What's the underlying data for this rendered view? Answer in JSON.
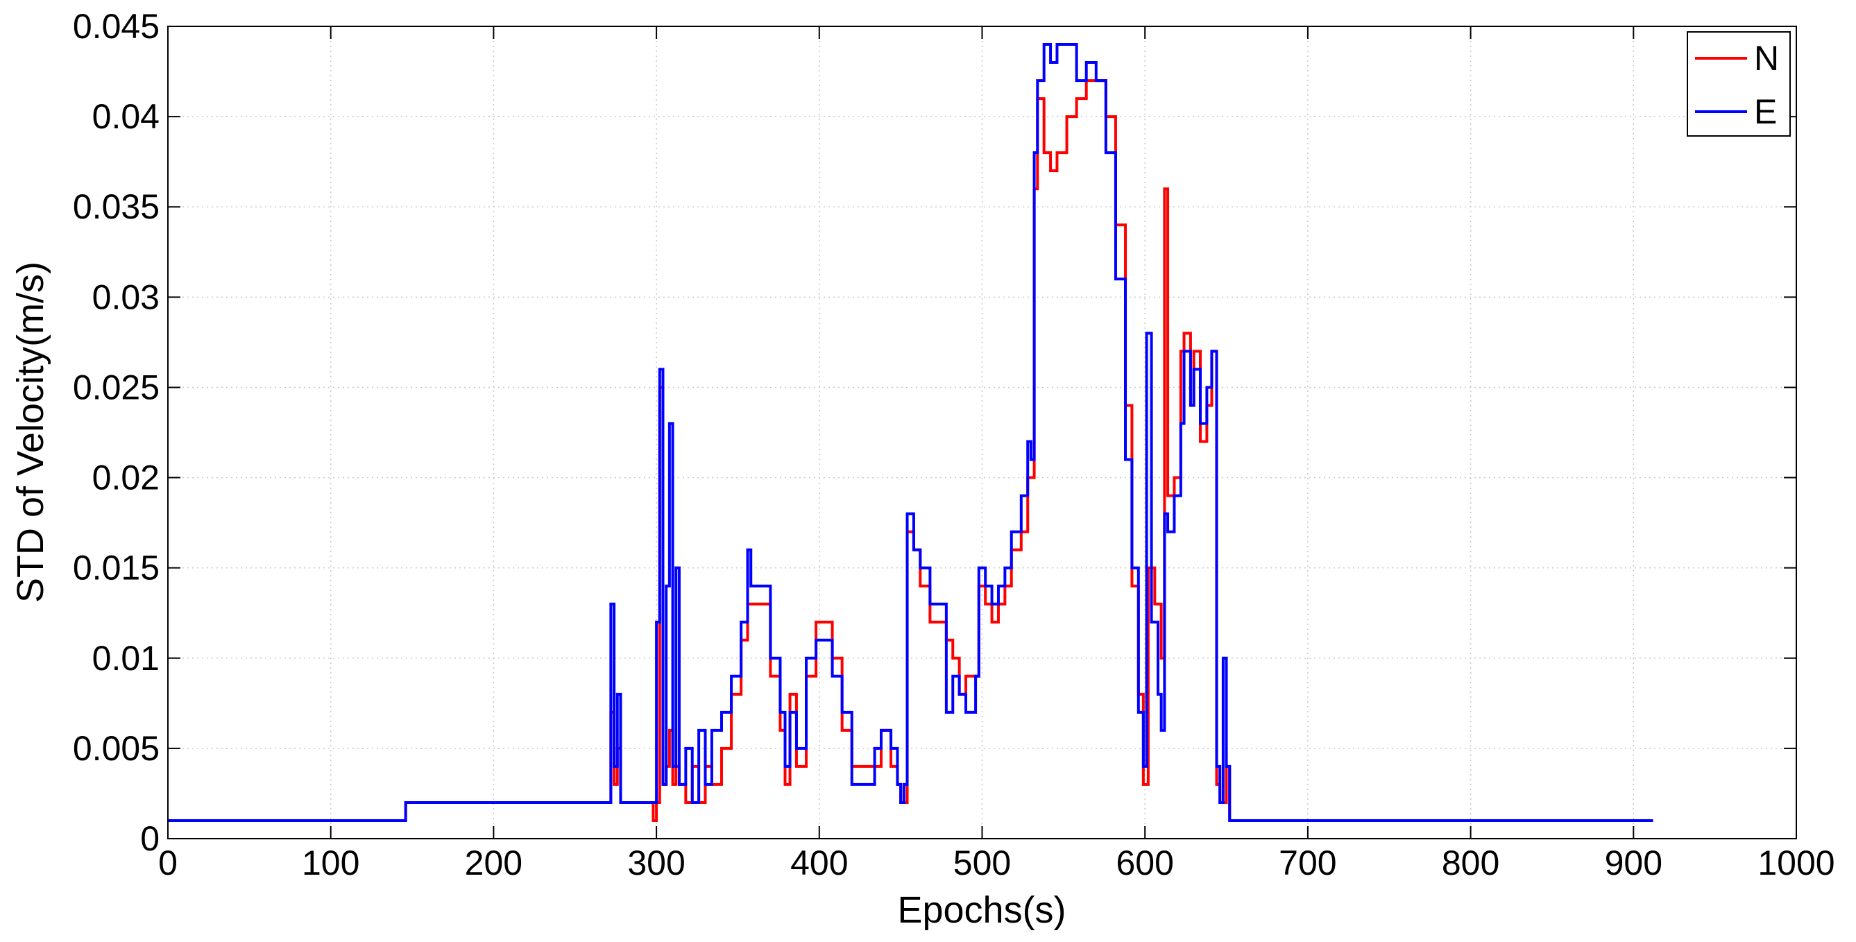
{
  "chart_data": {
    "type": "line",
    "title": "",
    "xlabel": "Epochs(s)",
    "ylabel": "STD of Velocity(m/s)",
    "xlim": [
      0,
      1000
    ],
    "ylim": [
      0,
      0.045
    ],
    "xticks": [
      "0",
      "100",
      "200",
      "300",
      "400",
      "500",
      "600",
      "700",
      "800",
      "900",
      "1000"
    ],
    "yticks": [
      "0",
      "0.005",
      "0.01",
      "0.015",
      "0.02",
      "0.025",
      "0.03",
      "0.035",
      "0.04",
      "0.045"
    ],
    "grid": true,
    "legend_position": "top-right",
    "series": [
      {
        "name": "N",
        "color": "#ff0000",
        "points": [
          [
            0,
            0.001
          ],
          [
            146,
            0.001
          ],
          [
            146,
            0.002
          ],
          [
            272,
            0.002
          ],
          [
            272,
            0.007
          ],
          [
            274,
            0.003
          ],
          [
            276,
            0.005
          ],
          [
            278,
            0.002
          ],
          [
            296,
            0.002
          ],
          [
            298,
            0.001
          ],
          [
            300,
            0.002
          ],
          [
            302,
            0.025
          ],
          [
            304,
            0.003
          ],
          [
            306,
            0.004
          ],
          [
            308,
            0.006
          ],
          [
            310,
            0.003
          ],
          [
            312,
            0.004
          ],
          [
            314,
            0.003
          ],
          [
            318,
            0.002
          ],
          [
            322,
            0.004
          ],
          [
            326,
            0.002
          ],
          [
            330,
            0.004
          ],
          [
            334,
            0.003
          ],
          [
            340,
            0.005
          ],
          [
            346,
            0.008
          ],
          [
            352,
            0.011
          ],
          [
            356,
            0.013
          ],
          [
            364,
            0.013
          ],
          [
            370,
            0.009
          ],
          [
            376,
            0.006
          ],
          [
            379,
            0.003
          ],
          [
            382,
            0.008
          ],
          [
            386,
            0.004
          ],
          [
            392,
            0.009
          ],
          [
            398,
            0.012
          ],
          [
            404,
            0.012
          ],
          [
            408,
            0.01
          ],
          [
            414,
            0.006
          ],
          [
            420,
            0.004
          ],
          [
            430,
            0.004
          ],
          [
            434,
            0.004
          ],
          [
            438,
            0.006
          ],
          [
            444,
            0.004
          ],
          [
            448,
            0.003
          ],
          [
            450,
            0.002
          ],
          [
            452,
            0.002
          ],
          [
            454,
            0.017
          ],
          [
            458,
            0.016
          ],
          [
            462,
            0.014
          ],
          [
            468,
            0.012
          ],
          [
            474,
            0.012
          ],
          [
            478,
            0.011
          ],
          [
            482,
            0.01
          ],
          [
            486,
            0.008
          ],
          [
            490,
            0.009
          ],
          [
            496,
            0.009
          ],
          [
            498,
            0.014
          ],
          [
            502,
            0.013
          ],
          [
            506,
            0.012
          ],
          [
            510,
            0.013
          ],
          [
            514,
            0.014
          ],
          [
            518,
            0.016
          ],
          [
            524,
            0.017
          ],
          [
            528,
            0.02
          ],
          [
            530,
            0.02
          ],
          [
            532,
            0.036
          ],
          [
            534,
            0.041
          ],
          [
            538,
            0.038
          ],
          [
            542,
            0.037
          ],
          [
            546,
            0.038
          ],
          [
            552,
            0.04
          ],
          [
            558,
            0.041
          ],
          [
            564,
            0.042
          ],
          [
            570,
            0.042
          ],
          [
            576,
            0.04
          ],
          [
            582,
            0.034
          ],
          [
            588,
            0.024
          ],
          [
            592,
            0.014
          ],
          [
            596,
            0.008
          ],
          [
            599,
            0.003
          ],
          [
            602,
            0.015
          ],
          [
            606,
            0.013
          ],
          [
            610,
            0.01
          ],
          [
            612,
            0.036
          ],
          [
            614,
            0.019
          ],
          [
            618,
            0.02
          ],
          [
            622,
            0.027
          ],
          [
            624,
            0.028
          ],
          [
            628,
            0.024
          ],
          [
            630,
            0.027
          ],
          [
            634,
            0.022
          ],
          [
            638,
            0.024
          ],
          [
            641,
            0.027
          ],
          [
            644,
            0.003
          ],
          [
            646,
            0.002
          ],
          [
            648,
            0.002
          ],
          [
            650,
            0.004
          ],
          [
            652,
            0.001
          ],
          [
            912,
            0.001
          ]
        ]
      },
      {
        "name": "E",
        "color": "#0000ff",
        "points": [
          [
            0,
            0.001
          ],
          [
            146,
            0.001
          ],
          [
            146,
            0.002
          ],
          [
            272,
            0.002
          ],
          [
            272,
            0.013
          ],
          [
            274,
            0.004
          ],
          [
            276,
            0.008
          ],
          [
            278,
            0.002
          ],
          [
            298,
            0.002
          ],
          [
            300,
            0.012
          ],
          [
            302,
            0.026
          ],
          [
            304,
            0.003
          ],
          [
            306,
            0.014
          ],
          [
            308,
            0.023
          ],
          [
            310,
            0.004
          ],
          [
            312,
            0.015
          ],
          [
            314,
            0.003
          ],
          [
            318,
            0.005
          ],
          [
            322,
            0.002
          ],
          [
            326,
            0.006
          ],
          [
            330,
            0.003
          ],
          [
            334,
            0.006
          ],
          [
            340,
            0.007
          ],
          [
            346,
            0.009
          ],
          [
            352,
            0.012
          ],
          [
            356,
            0.016
          ],
          [
            358,
            0.014
          ],
          [
            364,
            0.014
          ],
          [
            370,
            0.01
          ],
          [
            376,
            0.007
          ],
          [
            379,
            0.004
          ],
          [
            382,
            0.007
          ],
          [
            386,
            0.005
          ],
          [
            392,
            0.01
          ],
          [
            398,
            0.011
          ],
          [
            404,
            0.011
          ],
          [
            408,
            0.009
          ],
          [
            414,
            0.007
          ],
          [
            420,
            0.003
          ],
          [
            430,
            0.003
          ],
          [
            434,
            0.005
          ],
          [
            438,
            0.006
          ],
          [
            444,
            0.005
          ],
          [
            448,
            0.003
          ],
          [
            450,
            0.002
          ],
          [
            452,
            0.003
          ],
          [
            454,
            0.018
          ],
          [
            458,
            0.016
          ],
          [
            462,
            0.015
          ],
          [
            468,
            0.013
          ],
          [
            474,
            0.013
          ],
          [
            478,
            0.007
          ],
          [
            482,
            0.009
          ],
          [
            486,
            0.008
          ],
          [
            490,
            0.007
          ],
          [
            496,
            0.009
          ],
          [
            498,
            0.015
          ],
          [
            502,
            0.014
          ],
          [
            506,
            0.013
          ],
          [
            510,
            0.014
          ],
          [
            514,
            0.015
          ],
          [
            518,
            0.017
          ],
          [
            524,
            0.019
          ],
          [
            528,
            0.022
          ],
          [
            530,
            0.021
          ],
          [
            532,
            0.038
          ],
          [
            534,
            0.042
          ],
          [
            538,
            0.044
          ],
          [
            542,
            0.043
          ],
          [
            546,
            0.044
          ],
          [
            552,
            0.044
          ],
          [
            558,
            0.042
          ],
          [
            564,
            0.043
          ],
          [
            570,
            0.042
          ],
          [
            576,
            0.038
          ],
          [
            582,
            0.031
          ],
          [
            588,
            0.021
          ],
          [
            592,
            0.015
          ],
          [
            596,
            0.007
          ],
          [
            599,
            0.004
          ],
          [
            601,
            0.028
          ],
          [
            604,
            0.012
          ],
          [
            608,
            0.008
          ],
          [
            610,
            0.006
          ],
          [
            612,
            0.018
          ],
          [
            614,
            0.017
          ],
          [
            618,
            0.019
          ],
          [
            622,
            0.023
          ],
          [
            624,
            0.027
          ],
          [
            628,
            0.024
          ],
          [
            630,
            0.026
          ],
          [
            634,
            0.023
          ],
          [
            638,
            0.025
          ],
          [
            641,
            0.027
          ],
          [
            644,
            0.004
          ],
          [
            646,
            0.002
          ],
          [
            648,
            0.01
          ],
          [
            650,
            0.004
          ],
          [
            652,
            0.001
          ],
          [
            912,
            0.001
          ]
        ]
      }
    ]
  }
}
